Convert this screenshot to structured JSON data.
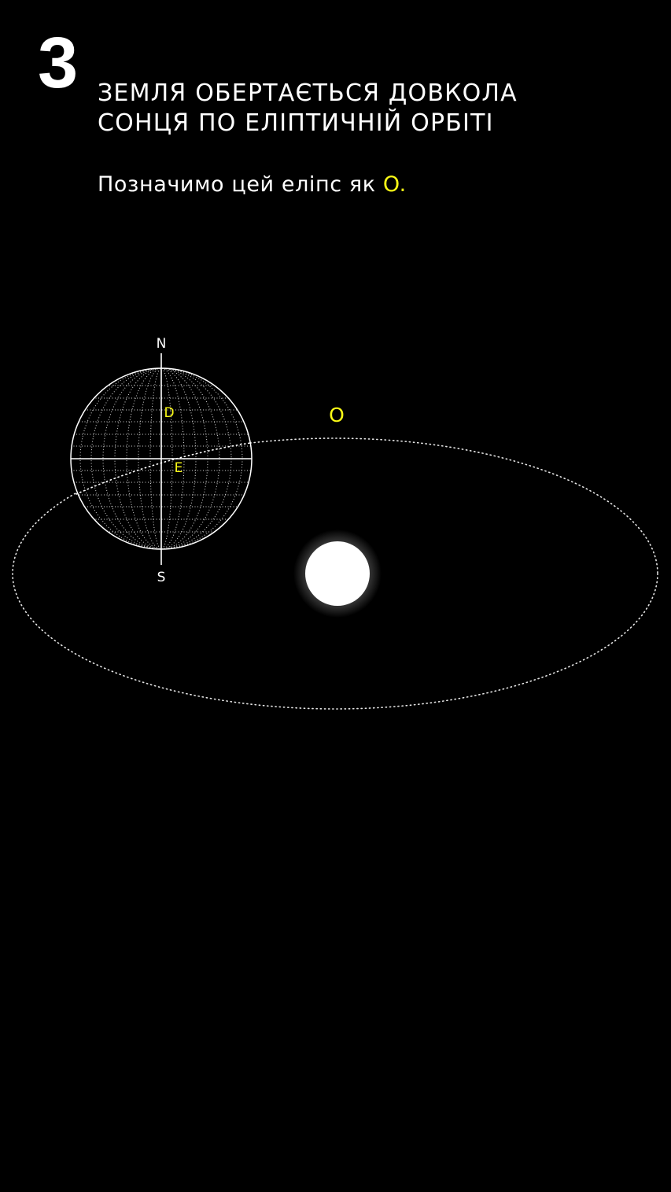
{
  "step": {
    "number": "3",
    "headline_line1": "ЗЕМЛЯ ОБЕРТАЄТЬСЯ ДОВКОЛА",
    "headline_line2": "СОНЦЯ ПО ЕЛІПТИЧНІЙ ОРБІТІ"
  },
  "subtitle": {
    "text": "Позначимо цей еліпс як ",
    "ellipse_symbol": "O",
    "end_punctuation": "."
  },
  "diagram": {
    "orbit_label": "O",
    "north_label": "N",
    "south_label": "S",
    "point_d_label": "D",
    "point_e_label": "E"
  },
  "colors": {
    "background": "#000000",
    "foreground": "#ffffff",
    "accent": "#fcfc16"
  }
}
